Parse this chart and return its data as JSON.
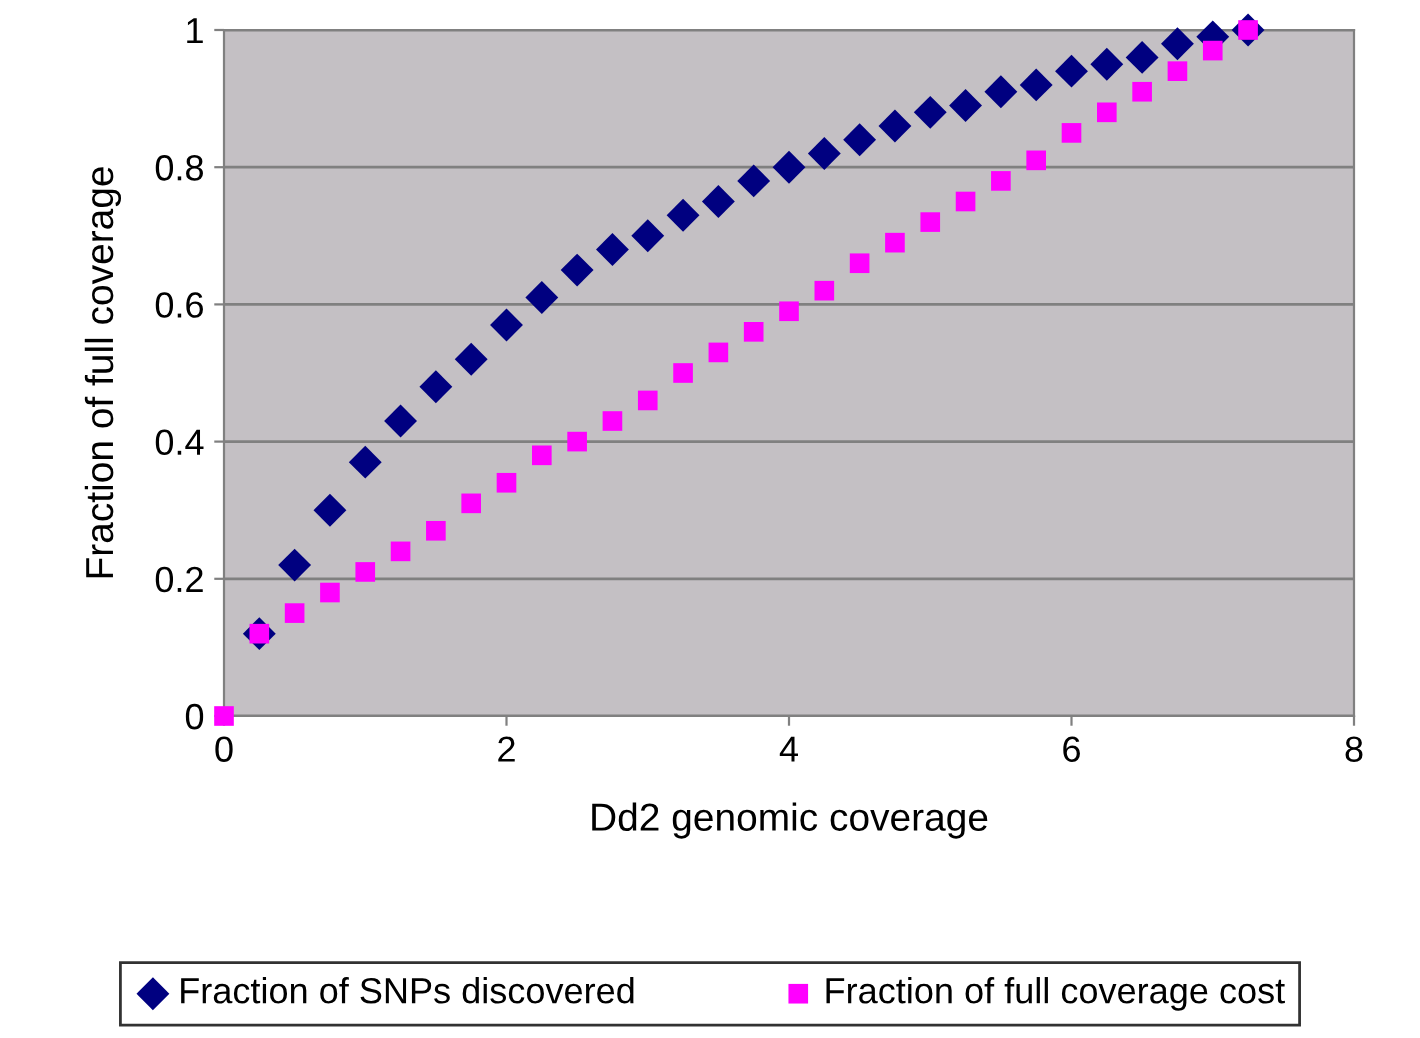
{
  "chart_data": {
    "type": "scatter",
    "xlabel": "Dd2 genomic coverage",
    "ylabel": "Fraction of full coverage",
    "x": [
      0,
      0.25,
      0.5,
      0.75,
      1,
      1.25,
      1.5,
      1.75,
      2,
      2.25,
      2.5,
      2.75,
      3,
      3.25,
      3.5,
      3.75,
      4,
      4.25,
      4.5,
      4.75,
      5,
      5.25,
      5.5,
      5.75,
      6,
      6.25,
      6.5,
      6.75,
      7,
      7.25
    ],
    "series": [
      {
        "name": "Fraction of SNPs discovered",
        "color": "#000080",
        "marker": "diamond",
        "values": [
          null,
          0.12,
          0.22,
          0.3,
          0.37,
          0.43,
          0.48,
          0.52,
          0.57,
          0.61,
          0.65,
          0.68,
          0.7,
          0.73,
          0.75,
          0.78,
          0.8,
          0.82,
          0.84,
          0.86,
          0.88,
          0.89,
          0.91,
          0.92,
          0.94,
          0.95,
          0.96,
          0.98,
          0.99,
          1
        ]
      },
      {
        "name": "Fraction of full coverage cost",
        "color": "#ff00ff",
        "marker": "square",
        "values": [
          0,
          0.12,
          0.15,
          0.18,
          0.21,
          0.24,
          0.27,
          0.31,
          0.34,
          0.38,
          0.4,
          0.43,
          0.46,
          0.5,
          0.53,
          0.56,
          0.59,
          0.62,
          0.66,
          0.69,
          0.72,
          0.75,
          0.78,
          0.81,
          0.85,
          0.88,
          0.91,
          0.94,
          0.97,
          1
        ]
      }
    ],
    "xlim": [
      0,
      8
    ],
    "xticks": [
      0,
      2,
      4,
      6,
      8
    ],
    "ylim": [
      0,
      1
    ],
    "yticks": [
      0,
      0.2,
      0.4,
      0.6,
      0.8,
      1
    ],
    "grid": "y",
    "legend": "bottom"
  }
}
